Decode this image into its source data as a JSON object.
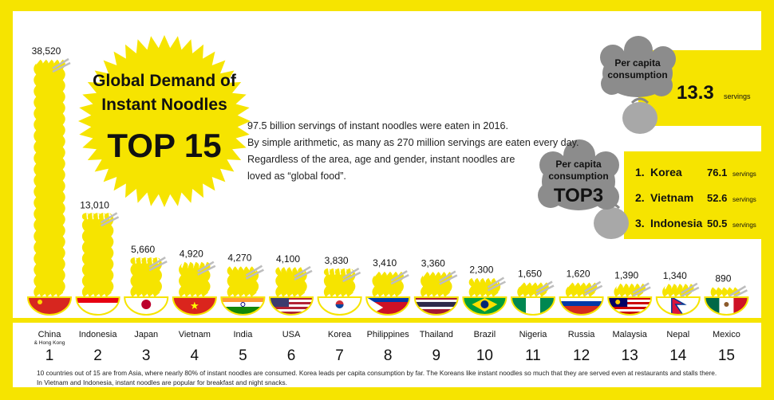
{
  "colors": {
    "accent": "#f6e400",
    "bowl_rim": "#ffffff",
    "gray": "#8c8c8c"
  },
  "intro_lines": [
    "97.5 billion servings of instant noodles were eaten in 2016.",
    "By simple arithmetic, as many as 270 million servings are eaten every day.",
    "Regardless of the area, age and gender, instant noodles are",
    "loved as “global food”."
  ],
  "per_capita": {
    "label_lines": [
      "Per capita",
      "consumption"
    ],
    "value": "13.3",
    "unit": "servings"
  },
  "top3": {
    "label_lines": [
      "Per capita",
      "consumption",
      "TOP3"
    ],
    "items": [
      {
        "rank": "1.",
        "country": "Korea",
        "value": "76.1",
        "unit": "servings"
      },
      {
        "rank": "2.",
        "country": "Vietnam",
        "value": "52.6",
        "unit": "servings"
      },
      {
        "rank": "3.",
        "country": "Indonesia",
        "value": "50.5",
        "unit": "servings"
      }
    ]
  },
  "footnote_lines": [
    "10 countries out of 15 are from Asia, where nearly 80% of instant noodles are consumed. Korea leads per capita consumption by far. The Koreans like instant noodles so much that they are served even at restaurants and stalls there.",
    "In Vietnam and Indonesia, instant noodles are popular for breakfast and night snacks."
  ],
  "chart_data": {
    "type": "bar",
    "title_lines": [
      "Global Demand of",
      "Instant Noodles",
      "TOP 15"
    ],
    "categories": [
      "China",
      "Indonesia",
      "Japan",
      "Vietnam",
      "India",
      "USA",
      "Korea",
      "Philippines",
      "Thailand",
      "Brazil",
      "Nigeria",
      "Russia",
      "Malaysia",
      "Nepal",
      "Mexico"
    ],
    "category_sublabels": [
      "& Hong Kong",
      "",
      "",
      "",
      "",
      "",
      "",
      "",
      "",
      "",
      "",
      "",
      "",
      "",
      ""
    ],
    "ranks": [
      "1",
      "2",
      "3",
      "4",
      "5",
      "6",
      "7",
      "8",
      "9",
      "10",
      "11",
      "12",
      "13",
      "14",
      "15"
    ],
    "values": [
      38520,
      13010,
      5660,
      4920,
      4270,
      4100,
      3830,
      3410,
      3360,
      2300,
      1650,
      1620,
      1390,
      1340,
      890
    ],
    "value_labels": [
      "38,520",
      "13,010",
      "5,660",
      "4,920",
      "4,270",
      "4,100",
      "3,830",
      "3,410",
      "3,360",
      "2,300",
      "1,650",
      "1,620",
      "1,390",
      "1,340",
      "890"
    ],
    "flags": [
      "china",
      "indonesia",
      "japan",
      "vietnam",
      "india",
      "usa",
      "korea",
      "philippines",
      "thailand",
      "brazil",
      "nigeria",
      "russia",
      "malaysia",
      "nepal",
      "mexico"
    ],
    "bar_style": "noodle-bowl",
    "bar_color": "#f6e400",
    "xlabel": "",
    "ylabel": "",
    "ylim": [
      0,
      38520
    ],
    "grid": false
  }
}
